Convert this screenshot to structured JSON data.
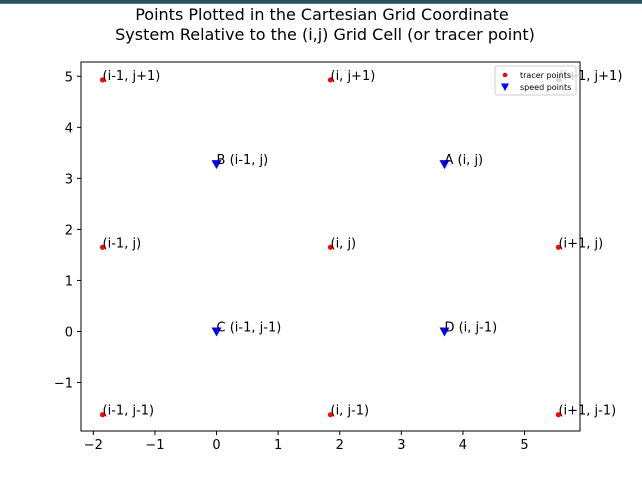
{
  "chart_data": {
    "type": "scatter",
    "title_lines": [
      "Points Plotted in the Cartesian Grid Coordinate",
      "System Relative to the (i,j) Grid Cell (or tracer point)"
    ],
    "xlim": [
      -2.2,
      5.9
    ],
    "ylim": [
      -1.95,
      5.28
    ],
    "xticks": [
      -2,
      -1,
      0,
      1,
      2,
      3,
      4,
      5
    ],
    "yticks": [
      -1,
      0,
      1,
      2,
      3,
      4,
      5
    ],
    "xtick_labels": [
      "−2",
      "−1",
      "0",
      "1",
      "2",
      "3",
      "4",
      "5"
    ],
    "ytick_labels": [
      "−1",
      "0",
      "1",
      "2",
      "3",
      "4",
      "5"
    ],
    "grid": false,
    "legend_placement": "top-right",
    "series": [
      {
        "name": "tracer points",
        "color": "#ff0000",
        "marker": "circle",
        "points": [
          {
            "x": -1.85,
            "y": 4.93,
            "label": "(i-1, j+1)"
          },
          {
            "x": 1.85,
            "y": 4.93,
            "label": "(i, j+1)"
          },
          {
            "x": 5.55,
            "y": 4.93,
            "label": "(i+1, j+1)"
          },
          {
            "x": -1.85,
            "y": 1.65,
            "label": "(i-1, j)"
          },
          {
            "x": 1.85,
            "y": 1.65,
            "label": "(i, j)"
          },
          {
            "x": 5.55,
            "y": 1.65,
            "label": "(i+1, j)"
          },
          {
            "x": -1.85,
            "y": -1.63,
            "label": "(i-1, j-1)"
          },
          {
            "x": 1.85,
            "y": -1.63,
            "label": "(i, j-1)"
          },
          {
            "x": 5.55,
            "y": -1.63,
            "label": "(i+1, j-1)"
          }
        ]
      },
      {
        "name": "speed points",
        "color": "#0000ff",
        "marker": "triangle-down",
        "points": [
          {
            "x": 0.0,
            "y": 3.28,
            "label": "B (i-1, j)"
          },
          {
            "x": 3.7,
            "y": 3.28,
            "label": "A (i, j)"
          },
          {
            "x": 0.0,
            "y": 0.0,
            "label": "C (i-1, j-1)"
          },
          {
            "x": 3.7,
            "y": 0.0,
            "label": "D (i, j-1)"
          }
        ]
      }
    ]
  }
}
